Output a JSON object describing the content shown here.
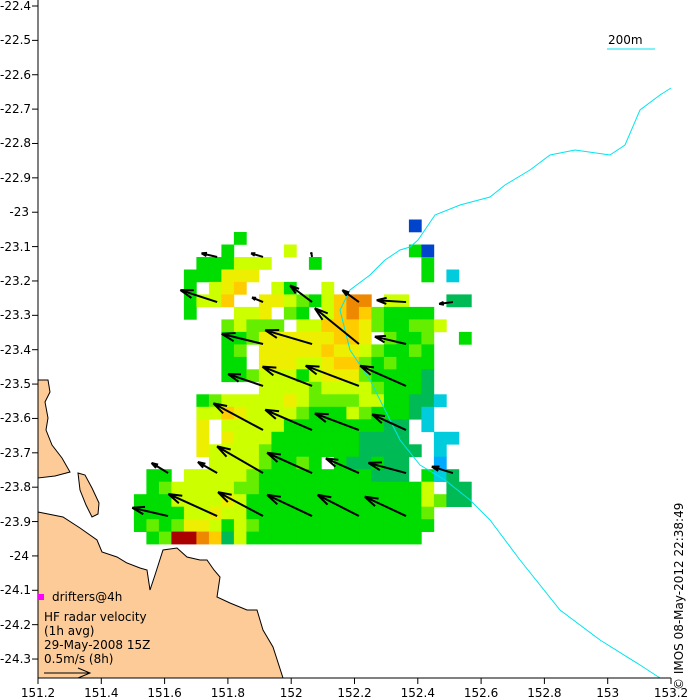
{
  "map": {
    "x_ticks": [
      "151.2",
      "151.4",
      "151.6",
      "151.8",
      "152",
      "152.2",
      "152.4",
      "152.6",
      "152.8",
      "153",
      "153.2"
    ],
    "y_ticks": [
      "-22.4",
      "-22.5",
      "-22.6",
      "-22.7",
      "-22.8",
      "-22.9",
      "-23",
      "-23.1",
      "-23.2",
      "-23.3",
      "-23.4",
      "-23.5",
      "-23.6",
      "-23.7",
      "-23.8",
      "-23.9",
      "-24",
      "-24.1",
      "-24.2",
      "-24.3"
    ],
    "lon_range": [
      151.2,
      153.2
    ],
    "lat_range": [
      -22.4,
      -24.3
    ],
    "land_color": "#fdcb98",
    "isobath_color": "#00e5ee",
    "isobath_label": "200m"
  },
  "legend": {
    "drifters": "drifters@4h",
    "drifter_color": "#ff00ff",
    "title": "HF radar velocity",
    "avg": "(1h avg)",
    "time": "29-May-2008 15Z",
    "scale": "0.5m/s (8h)",
    "scale_speed_ms": 0.5
  },
  "credit": "© IMOS 08-May-2012 22:38:49",
  "palette": {
    "B": "#0044cc",
    "G": "#00dd00",
    "g": "#66ee00",
    "Y": "#ccff00",
    "y": "#eeee00",
    "O": "#ffcc00",
    "o": "#ee8800",
    "R": "#aa0000",
    "T": "#00bb55",
    "C": "#00ccdd",
    "L": "#00aaff"
  },
  "grid": {
    "lon0": 151.503,
    "lat0": -23.033,
    "dlon": 0.0395,
    "dlat": 0.036,
    "rows": [
      "......................B....",
      "........G..................",
      ".......G....Y.........GB...",
      ".....GGGYYY...G........G...",
      "....GGGyyy.............G.C.",
      "....G.YyO..YG..Y...........",
      "....GYYO..yyYgGYOoo.YY...TT",
      "....G...YYy.gG.YOoOgGGGG...",
      ".......gYggg.YYOOOygGGggY..",
      ".......GGgyyyyyyOOy.gGGg..G",
      ".......Gg.yyyyyOyyYgGGgG...",
      ".......GG.yyyYYyOOgGgGGG...",
      ".......GGgYYYGYyyygGGGGT...",
      "..........YYYYgYYYYgGGGT...",
      ".....GgYYYYYyYggggYYGGTTC..",
      ".....YYOyYYYYgGGGYgGGGTC...",
      ".....y.YYYYYGGGGGGGGTT.C...",
      ".....y.yYYYGGGGGGGTTTT..CC.",
      ".....yYYYYgGGGGGGGTTTTT.C..",
      "......YYYYgGGgG.GTTGTT..L..",
      ".GG.YYYYYgGGGGGGGGGTTT.GCT.",
      ".GgYYYYYggGGGGGGGGGGGGGY.TT",
      "GGGYYYYyYGGGGGGGGGGGGGGYgTT",
      "GGGGYYyYYGGGGGGGGGGGGGGg...",
      "GgGgyyYGYgGGGGGGGGGGGGGG...",
      ".GgRRoOTYGGGGGGGGGGGGGG...."
    ]
  },
  "vectors": [
    [
      151.766,
      -23.141,
      -0.17,
      0.04
    ],
    [
      151.911,
      -23.141,
      -0.13,
      0.04
    ],
    [
      152.066,
      -23.141,
      -0.01,
      0.05
    ],
    [
      151.766,
      -23.271,
      -0.4,
      0.13
    ],
    [
      151.911,
      -23.271,
      -0.12,
      0.05
    ],
    [
      152.066,
      -23.271,
      -0.24,
      0.18
    ],
    [
      152.214,
      -23.271,
      -0.18,
      0.13
    ],
    [
      152.363,
      -23.271,
      -0.32,
      0.02
    ],
    [
      152.511,
      -23.271,
      -0.15,
      -0.02
    ],
    [
      151.911,
      -23.392,
      -0.45,
      0.11
    ],
    [
      152.066,
      -23.392,
      -0.51,
      0.15
    ],
    [
      152.214,
      -23.392,
      -0.48,
      0.39
    ],
    [
      152.363,
      -23.392,
      -0.34,
      0.08
    ],
    [
      151.911,
      -23.513,
      -0.38,
      0.13
    ],
    [
      152.066,
      -23.513,
      -0.54,
      0.21
    ],
    [
      152.214,
      -23.513,
      -0.58,
      0.22
    ],
    [
      152.363,
      -23.513,
      -0.5,
      0.22
    ],
    [
      151.911,
      -23.64,
      -0.54,
      0.29
    ],
    [
      152.066,
      -23.64,
      -0.51,
      0.22
    ],
    [
      152.214,
      -23.64,
      -0.48,
      0.18
    ],
    [
      152.363,
      -23.64,
      -0.37,
      0.17
    ],
    [
      151.611,
      -23.764,
      -0.18,
      0.11
    ],
    [
      151.766,
      -23.764,
      -0.21,
      0.12
    ],
    [
      151.911,
      -23.764,
      -0.5,
      0.29
    ],
    [
      152.066,
      -23.764,
      -0.49,
      0.22
    ],
    [
      152.214,
      -23.764,
      -0.36,
      0.16
    ],
    [
      152.363,
      -23.764,
      -0.41,
      0.11
    ],
    [
      152.511,
      -23.764,
      -0.23,
      0.07
    ],
    [
      151.611,
      -23.888,
      -0.39,
      0.09
    ],
    [
      151.766,
      -23.888,
      -0.53,
      0.24
    ],
    [
      151.911,
      -23.888,
      -0.49,
      0.26
    ],
    [
      152.066,
      -23.888,
      -0.49,
      0.23
    ],
    [
      152.214,
      -23.888,
      -0.45,
      0.23
    ],
    [
      152.363,
      -23.888,
      -0.45,
      0.21
    ]
  ]
}
